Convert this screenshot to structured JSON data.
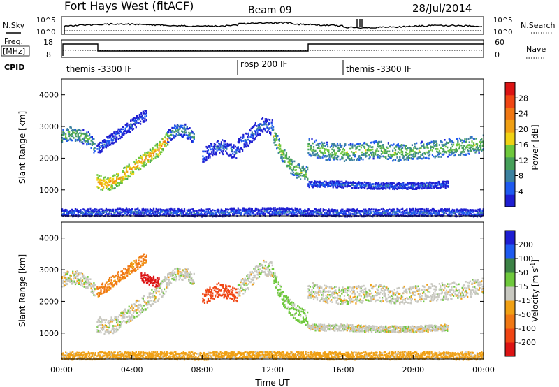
{
  "header": {
    "station": "Fort Hays West (fitACF)",
    "beam": "Beam 09",
    "date": "28/Jul/2014"
  },
  "top_panels": {
    "nsky_label": "N.Sky",
    "nsearch_label": "N.Search",
    "count_ticks": [
      "10^5",
      "10^0"
    ],
    "freq_label_1": "Freq.",
    "freq_label_2": "[MHz]",
    "freq_ticks": [
      "18",
      "8"
    ],
    "nave_label": "Nave",
    "nave_ticks": [
      "60",
      "0"
    ],
    "cpid_label": "CPID",
    "cpid_segments": [
      {
        "label": "themis -3300 IF",
        "start_hour": 0,
        "end_hour": 10
      },
      {
        "label": "rbsp 200 IF",
        "start_hour": 10,
        "end_hour": 16
      },
      {
        "label": "themis -3300 IF",
        "start_hour": 16,
        "end_hour": 24
      }
    ]
  },
  "chart_data": [
    {
      "type": "heatmap",
      "name": "power",
      "ylabel": "Slant Range [km]",
      "xlabel": "",
      "xlim": [
        0,
        24
      ],
      "ylim": [
        180,
        4500
      ],
      "yticks": [
        1000,
        2000,
        3000,
        4000
      ],
      "colorbar": {
        "label": "Power [dB]",
        "ticks": [
          "4",
          "8",
          "12",
          "16",
          "20",
          "24",
          "28"
        ],
        "range": [
          0,
          30
        ],
        "colors": [
          "#1e1ed2",
          "#1e5af0",
          "#3c82a0",
          "#46a05a",
          "#6ec83c",
          "#f0d214",
          "#f0a014",
          "#f07814",
          "#f04614",
          "#dc1414"
        ]
      },
      "echo_bands": [
        {
          "x": [
            0.0,
            0.5,
            1.0,
            1.5,
            1.9
          ],
          "y": [
            2700,
            2800,
            2750,
            2650,
            2350
          ],
          "width": 220,
          "power": 12
        },
        {
          "x": [
            2.0,
            2.5,
            3.0,
            3.5,
            4.0,
            4.5,
            5.0,
            5.5,
            6.0
          ],
          "y": [
            1300,
            1200,
            1300,
            1500,
            1700,
            1900,
            2100,
            2300,
            2650
          ],
          "width": 220,
          "power": 20
        },
        {
          "x": [
            2.0,
            3.0,
            4.0,
            4.8
          ],
          "y": [
            2300,
            2700,
            3100,
            3400
          ],
          "width": 180,
          "power": 6
        },
        {
          "x": [
            6.0,
            6.5,
            7.0,
            7.5
          ],
          "y": [
            2700,
            2900,
            2900,
            2700
          ],
          "width": 200,
          "power": 10
        },
        {
          "x": [
            8.0,
            8.5,
            9.0,
            9.5,
            10.0
          ],
          "y": [
            2100,
            2300,
            2400,
            2300,
            2200
          ],
          "width": 220,
          "power": 6
        },
        {
          "x": [
            10.0,
            10.5,
            11.0,
            11.5,
            12.0
          ],
          "y": [
            2400,
            2600,
            2900,
            3100,
            3000
          ],
          "width": 250,
          "power": 6
        },
        {
          "x": [
            12.0,
            12.5,
            13.0,
            13.5,
            14.0
          ],
          "y": [
            2800,
            2200,
            1800,
            1600,
            1500
          ],
          "width": 250,
          "power": 14
        },
        {
          "x": [
            14.0,
            15.0,
            16.0,
            17.0,
            18.0,
            19.0,
            20.0,
            21.0,
            22.0,
            23.0,
            24.0
          ],
          "y": [
            2400,
            2250,
            2200,
            2250,
            2300,
            2200,
            2250,
            2300,
            2350,
            2400,
            2500
          ],
          "width": 280,
          "power": 13
        },
        {
          "x": [
            14.0,
            16.0,
            18.0,
            20.0,
            22.0
          ],
          "y": [
            1200,
            1200,
            1150,
            1150,
            1200
          ],
          "width": 100,
          "power": 6
        },
        {
          "x": [
            0.0,
            4.0,
            8.0,
            12.0,
            16.0,
            20.0,
            24.0
          ],
          "y": [
            300,
            320,
            300,
            330,
            300,
            310,
            300
          ],
          "width": 120,
          "power": 6
        }
      ]
    },
    {
      "type": "heatmap",
      "name": "velocity",
      "ylabel": "Slant Range [km]",
      "xlabel": "Time UT",
      "xlim": [
        0,
        24
      ],
      "ylim": [
        180,
        4500
      ],
      "yticks": [
        1000,
        2000,
        3000,
        4000
      ],
      "xticks": [
        "00:00",
        "04:00",
        "08:00",
        "12:00",
        "16:00",
        "20:00",
        "00:00"
      ],
      "colorbar": {
        "label": "Velocity [m s",
        "label_superscript": "-1",
        "label_close": "]",
        "ticks": [
          "-200",
          "-100",
          "-50",
          "-15",
          "15",
          "50",
          "100",
          "200"
        ],
        "colors": [
          "#dc1414",
          "#f04614",
          "#f07814",
          "#f0a014",
          "#c8c8c0",
          "#6ec83c",
          "#3c8246",
          "#1e5af0",
          "#1e1ed2"
        ]
      },
      "echo_bands": [
        {
          "x": [
            0.0,
            0.5,
            1.0,
            1.5,
            1.9
          ],
          "y": [
            2700,
            2800,
            2750,
            2650,
            2350
          ],
          "width": 220,
          "velocity": 0
        },
        {
          "x": [
            2.0,
            2.5,
            3.0,
            3.5,
            4.0,
            4.5,
            5.0,
            5.5,
            6.0
          ],
          "y": [
            1300,
            1200,
            1300,
            1500,
            1700,
            1900,
            2100,
            2300,
            2650
          ],
          "width": 260,
          "velocity": 0
        },
        {
          "x": [
            2.0,
            3.0,
            4.0,
            4.8
          ],
          "y": [
            2300,
            2700,
            3100,
            3400
          ],
          "width": 180,
          "velocity": -60
        },
        {
          "x": [
            4.5,
            5.0,
            5.5
          ],
          "y": [
            2800,
            2700,
            2600
          ],
          "width": 160,
          "velocity": -250
        },
        {
          "x": [
            6.0,
            6.5,
            7.0,
            7.5
          ],
          "y": [
            2700,
            2900,
            2900,
            2700
          ],
          "width": 200,
          "velocity": 0
        },
        {
          "x": [
            8.0,
            8.5,
            9.0,
            9.5,
            10.0
          ],
          "y": [
            2100,
            2300,
            2400,
            2300,
            2200
          ],
          "width": 220,
          "velocity": -120
        },
        {
          "x": [
            10.0,
            10.5,
            11.0,
            11.5,
            12.0
          ],
          "y": [
            2400,
            2600,
            2900,
            3100,
            3000
          ],
          "width": 250,
          "velocity": 0
        },
        {
          "x": [
            12.0,
            12.5,
            13.0,
            13.5,
            14.0
          ],
          "y": [
            2800,
            2200,
            1800,
            1600,
            1500
          ],
          "width": 250,
          "velocity": 30
        },
        {
          "x": [
            14.0,
            15.0,
            16.0,
            17.0,
            18.0,
            19.0,
            20.0,
            21.0,
            22.0,
            23.0,
            24.0
          ],
          "y": [
            2400,
            2250,
            2200,
            2250,
            2300,
            2200,
            2250,
            2300,
            2350,
            2400,
            2500
          ],
          "width": 280,
          "velocity": 0
        },
        {
          "x": [
            14.0,
            16.0,
            18.0,
            20.0,
            22.0
          ],
          "y": [
            1200,
            1200,
            1150,
            1150,
            1200
          ],
          "width": 100,
          "velocity": 0
        },
        {
          "x": [
            0.0,
            4.0,
            8.0,
            12.0,
            16.0,
            20.0,
            24.0
          ],
          "y": [
            300,
            320,
            300,
            330,
            300,
            310,
            300
          ],
          "width": 120,
          "velocity": -30
        }
      ]
    }
  ]
}
